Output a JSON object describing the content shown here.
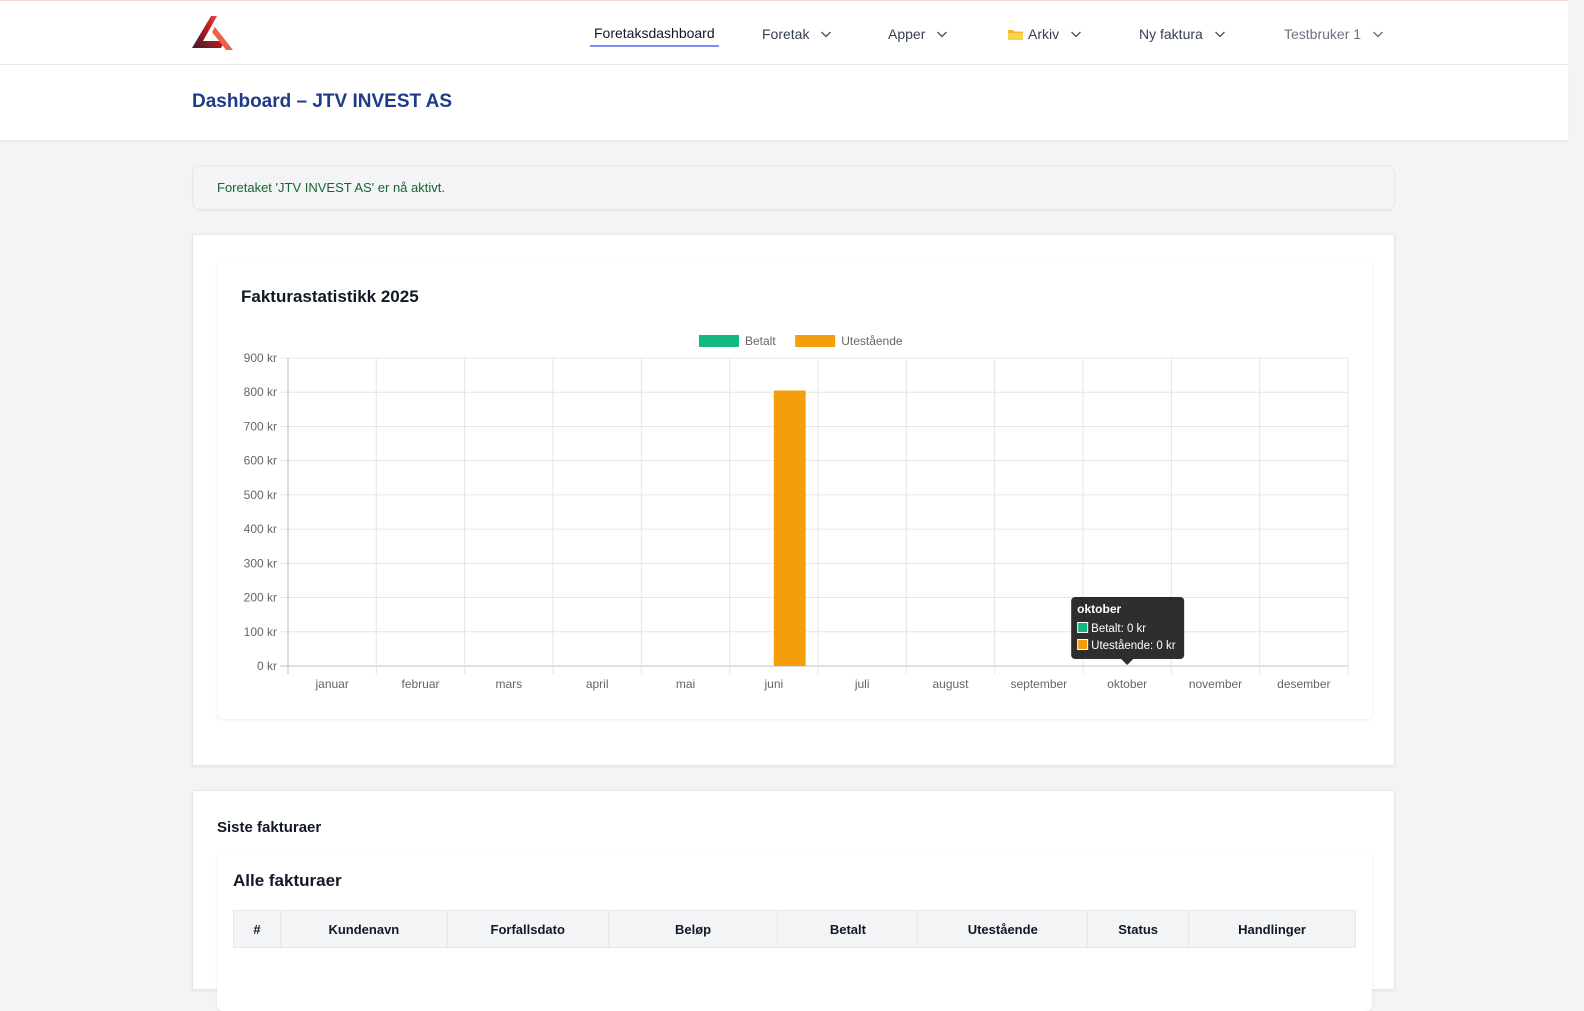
{
  "nav": {
    "items": [
      {
        "label": "Foretaksdashboard"
      },
      {
        "label": "Foretak"
      },
      {
        "label": "Apper"
      },
      {
        "label": "Arkiv"
      },
      {
        "label": "Ny faktura"
      },
      {
        "label": "Testbruker 1"
      }
    ]
  },
  "page": {
    "title": "Dashboard – JTV INVEST AS"
  },
  "alert": {
    "message": "Foretaket 'JTV INVEST AS' er nå aktivt."
  },
  "chart_card": {
    "title": "Fakturastatistikk 2025"
  },
  "chart_data": {
    "type": "bar",
    "title": "Fakturastatistikk 2025",
    "categories": [
      "januar",
      "februar",
      "mars",
      "april",
      "mai",
      "juni",
      "juli",
      "august",
      "september",
      "oktober",
      "november",
      "desember"
    ],
    "series": [
      {
        "name": "Betalt",
        "color": "#10b981",
        "values": [
          0,
          0,
          0,
          0,
          0,
          0,
          0,
          0,
          0,
          0,
          0,
          0
        ]
      },
      {
        "name": "Utestående",
        "color": "#f59e0b",
        "values": [
          0,
          0,
          0,
          0,
          0,
          805,
          0,
          0,
          0,
          0,
          0,
          0
        ]
      }
    ],
    "ylim": [
      0,
      900
    ],
    "yticks": [
      "0 kr",
      "100 kr",
      "200 kr",
      "300 kr",
      "400 kr",
      "500 kr",
      "600 kr",
      "700 kr",
      "800 kr",
      "900 kr"
    ],
    "grid": true,
    "legend": "top-center",
    "tooltip": {
      "month": "oktober",
      "lines": [
        "Betalt: 0 kr",
        "Utestående: 0 kr"
      ]
    }
  },
  "invoices": {
    "section_title": "Siste fakturaer",
    "subtitle": "Alle fakturaer",
    "columns": [
      "#",
      "Kundenavn",
      "Forfallsdato",
      "Beløp",
      "Betalt",
      "Utestående",
      "Status",
      "Handlinger"
    ]
  },
  "colors": {
    "accent": "#818cf8",
    "title": "#1e3a8a",
    "alert_text": "#166534"
  }
}
